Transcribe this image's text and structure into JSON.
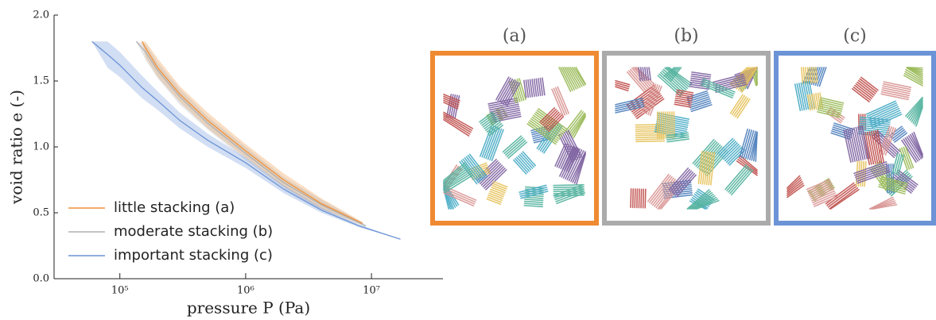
{
  "chart_data": {
    "type": "line",
    "xlabel": "pressure P (Pa)",
    "ylabel": "void ratio e (-)",
    "xscale": "log",
    "xlim": [
      30000,
      37000000
    ],
    "ylim": [
      0,
      2
    ],
    "xticks": [
      {
        "value": 100000,
        "label": "10⁵"
      },
      {
        "value": 1000000,
        "label": "10⁶"
      },
      {
        "value": 10000000,
        "label": "10⁷"
      }
    ],
    "yticks": [
      {
        "value": 0,
        "label": "0.0"
      },
      0.5,
      {
        "value": 1,
        "label": "1.0"
      },
      1.5,
      {
        "value": 2,
        "label": "2.0"
      }
    ],
    "legend": "lower left",
    "series": [
      {
        "name": "little stacking (a)",
        "color": "#f0913a",
        "x": [
          150000,
          160000,
          200000,
          300000,
          500000,
          1000000,
          2000000,
          4000000,
          8500000
        ],
        "values": [
          1.8,
          1.75,
          1.6,
          1.4,
          1.2,
          0.97,
          0.75,
          0.57,
          0.42
        ],
        "lower": [
          1.8,
          1.68,
          1.53,
          1.34,
          1.14,
          0.92,
          0.7,
          0.53,
          0.41
        ],
        "upper": [
          1.8,
          1.8,
          1.67,
          1.46,
          1.26,
          1.02,
          0.8,
          0.61,
          0.43
        ]
      },
      {
        "name": "moderate stacking (b)",
        "color": "#b0b0b0",
        "x": [
          135000,
          160000,
          200000,
          300000,
          500000,
          1000000,
          2000000,
          4000000,
          9000000
        ],
        "values": [
          1.8,
          1.72,
          1.58,
          1.38,
          1.18,
          0.95,
          0.73,
          0.56,
          0.4
        ],
        "lower": [
          1.8,
          1.66,
          1.52,
          1.32,
          1.13,
          0.9,
          0.69,
          0.52,
          0.39
        ],
        "upper": [
          1.8,
          1.78,
          1.64,
          1.44,
          1.23,
          1.0,
          0.77,
          0.6,
          0.41
        ]
      },
      {
        "name": "important stacking (c)",
        "color": "#6b93d6",
        "x": [
          60000,
          80000,
          100000,
          150000,
          200000,
          300000,
          500000,
          1000000,
          2000000,
          4000000,
          8000000,
          17000000
        ],
        "values": [
          1.8,
          1.7,
          1.62,
          1.45,
          1.35,
          1.2,
          1.05,
          0.88,
          0.68,
          0.52,
          0.4,
          0.3
        ],
        "lower": [
          1.8,
          1.6,
          1.53,
          1.37,
          1.28,
          1.14,
          1.0,
          0.84,
          0.65,
          0.5,
          0.39,
          0.3
        ],
        "upper": [
          1.8,
          1.8,
          1.72,
          1.54,
          1.42,
          1.26,
          1.1,
          0.92,
          0.71,
          0.54,
          0.41,
          0.3
        ]
      }
    ]
  },
  "panels": [
    {
      "label": "(a)",
      "color": "#ef8a32"
    },
    {
      "label": "(b)",
      "color": "#ababab"
    },
    {
      "label": "(c)",
      "color": "#6b93d6"
    }
  ]
}
